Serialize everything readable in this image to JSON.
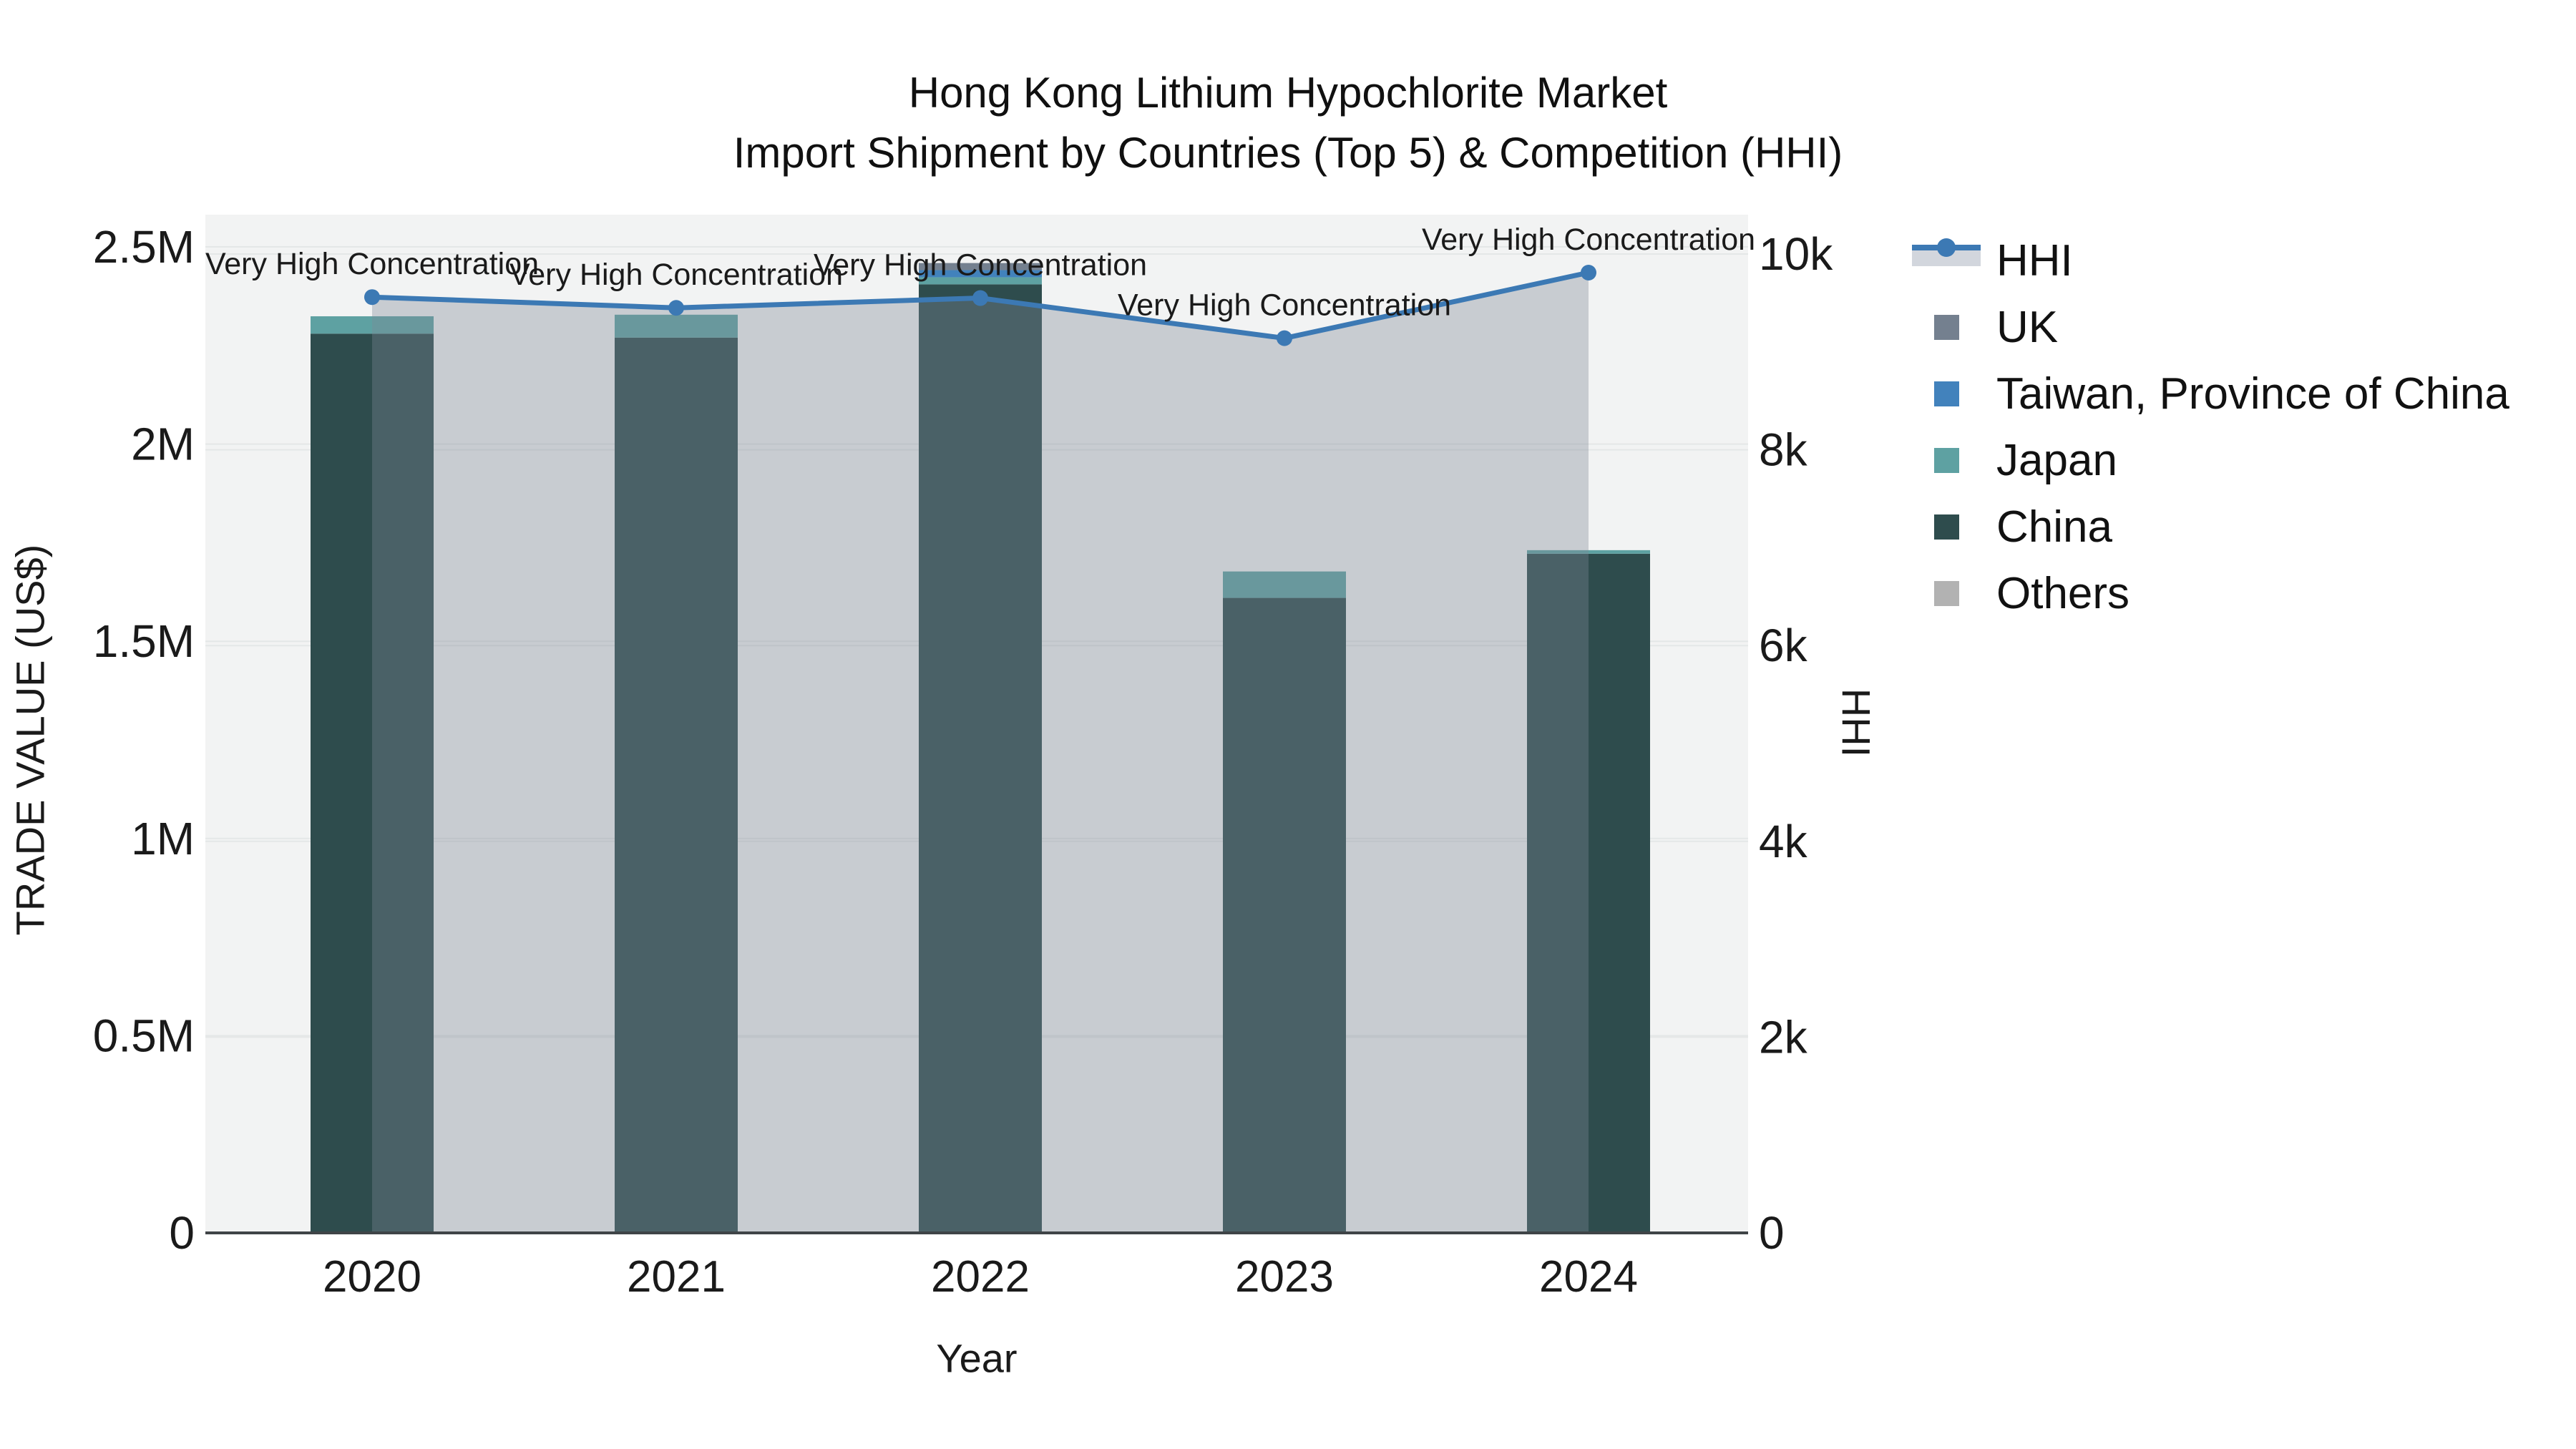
{
  "figure": {
    "title_line1": "Hong Kong Lithium Hypochlorite Market",
    "title_line2": "Import Shipment by Countries (Top 5) & Competition (HHI)"
  },
  "chart_data": {
    "type": "bar+line",
    "title": "Hong Kong Lithium Hypochlorite Market Import Shipment by Countries (Top 5) & Competition (HHI)",
    "categories": [
      "2020",
      "2021",
      "2022",
      "2023",
      "2024"
    ],
    "bar_unit": "US$",
    "bar_series": [
      {
        "name": "UK",
        "color": "#74808f",
        "values": [
          0,
          0,
          18000,
          0,
          0
        ]
      },
      {
        "name": "Taiwan, Province of China",
        "color": "#4282bc",
        "values": [
          0,
          0,
          18000,
          0,
          0
        ]
      },
      {
        "name": "Japan",
        "color": "#5ea1a2",
        "values": [
          44000,
          58000,
          18000,
          67000,
          9000
        ]
      },
      {
        "name": "China",
        "color": "#2e4c4d",
        "values": [
          2280000,
          2270000,
          2405000,
          1610000,
          1722000
        ]
      },
      {
        "name": "Others",
        "color": "#b2b2b2",
        "values": [
          0,
          0,
          0,
          0,
          0
        ]
      }
    ],
    "bar_totals": [
      2324000,
      2328000,
      2459000,
      1677000,
      1731000
    ],
    "stack_order": [
      "China",
      "Japan",
      "Taiwan, Province of China",
      "UK",
      "Others"
    ],
    "line_series": {
      "name": "HHI",
      "color": "#3c79b4",
      "area_fill": "rgba(124,135,150,0.36)",
      "values": [
        9560,
        9450,
        9550,
        9140,
        9810
      ]
    },
    "annotations": [
      {
        "year": "2020",
        "text": "Very High Concentration"
      },
      {
        "year": "2021",
        "text": "Very High Concentration"
      },
      {
        "year": "2022",
        "text": "Very High Concentration"
      },
      {
        "year": "2023",
        "text": "Very High Concentration"
      },
      {
        "year": "2024",
        "text": "Very High Concentration"
      }
    ],
    "axes": {
      "x_label": "Year",
      "y_left_label": "TRADE VALUE (US$)",
      "y_right_label": "HHI",
      "y_left_range": [
        0,
        2500000
      ],
      "y_right_range": [
        0,
        10000
      ],
      "y_left_ticks": [
        {
          "v": 0,
          "label": "0"
        },
        {
          "v": 500000,
          "label": "0.5M"
        },
        {
          "v": 1000000,
          "label": "1M"
        },
        {
          "v": 1500000,
          "label": "1.5M"
        },
        {
          "v": 2000000,
          "label": "2M"
        },
        {
          "v": 2500000,
          "label": "2.5M"
        }
      ],
      "y_right_ticks": [
        {
          "v": 0,
          "label": "0"
        },
        {
          "v": 2000,
          "label": "2k"
        },
        {
          "v": 4000,
          "label": "4k"
        },
        {
          "v": 6000,
          "label": "6k"
        },
        {
          "v": 8000,
          "label": "8k"
        },
        {
          "v": 10000,
          "label": "10k"
        }
      ],
      "grid_on": true
    },
    "legend": [
      {
        "name": "HHI",
        "type": "line",
        "color": "#3c79b4"
      },
      {
        "name": "UK",
        "type": "square",
        "color": "#74808f"
      },
      {
        "name": "Taiwan, Province of China",
        "type": "square",
        "color": "#4282bc"
      },
      {
        "name": "Japan",
        "type": "square",
        "color": "#5ea1a2"
      },
      {
        "name": "China",
        "type": "square",
        "color": "#2e4c4d"
      },
      {
        "name": "Others",
        "type": "square",
        "color": "#b2b2b2"
      }
    ],
    "plot_bg": "#f2f3f3",
    "grid_color": "#e4e7e7",
    "baseline_color": "#3f4447"
  }
}
